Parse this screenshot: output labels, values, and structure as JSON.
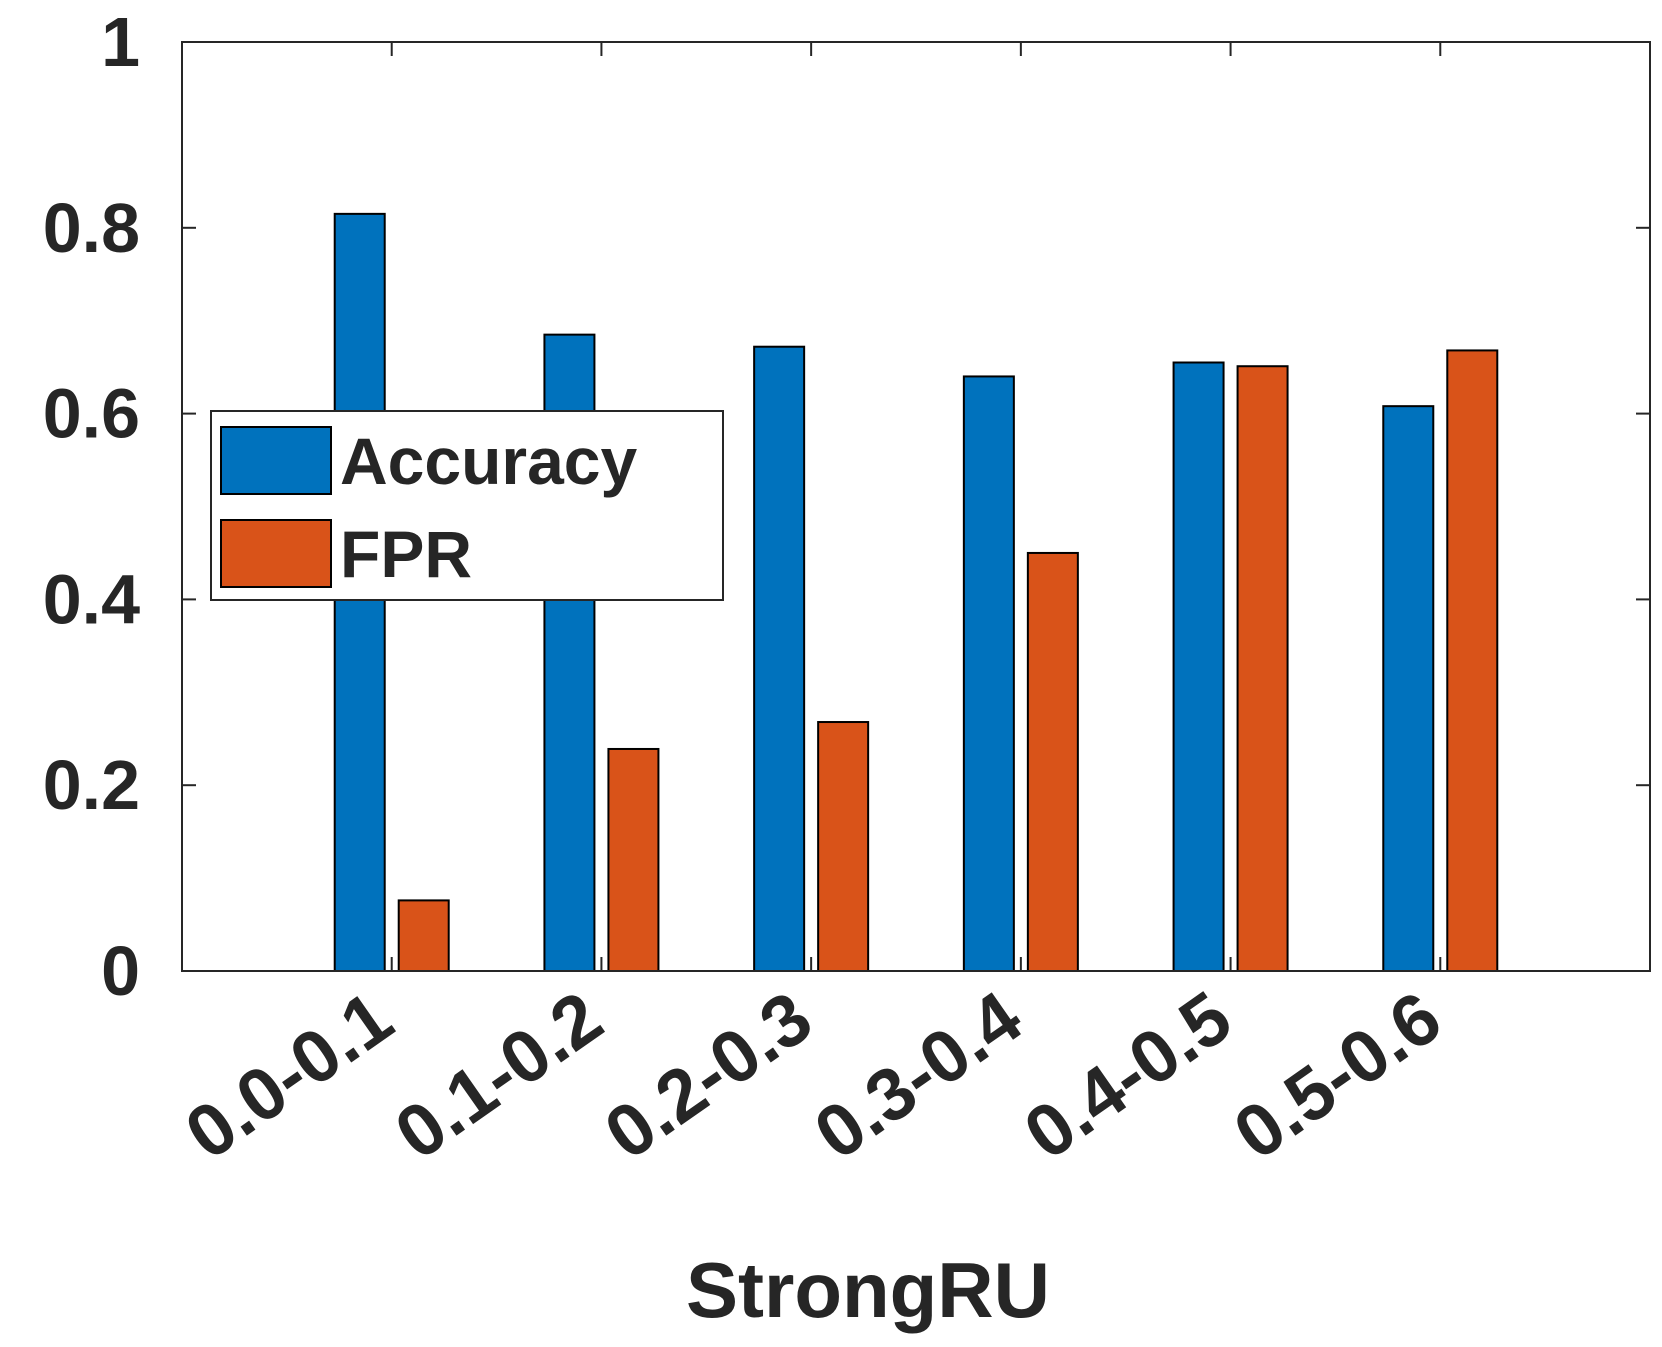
{
  "chart_data": {
    "type": "bar",
    "title": "",
    "xlabel": "StrongRU",
    "ylabel": "",
    "categories": [
      "0.0-0.1",
      "0.1-0.2",
      "0.2-0.3",
      "0.3-0.4",
      "0.4-0.5",
      "0.5-0.6"
    ],
    "series": [
      {
        "name": "Accuracy",
        "color": "#0072BD",
        "values": [
          0.815,
          0.685,
          0.672,
          0.64,
          0.655,
          0.608
        ]
      },
      {
        "name": "FPR",
        "color": "#D95319",
        "values": [
          0.076,
          0.239,
          0.268,
          0.45,
          0.651,
          0.668
        ]
      }
    ],
    "ylim": [
      0,
      1
    ],
    "yticks": [
      "0",
      "0.2",
      "0.4",
      "0.6",
      "0.8",
      "1"
    ],
    "grid": false,
    "legend_position": "left-middle"
  }
}
